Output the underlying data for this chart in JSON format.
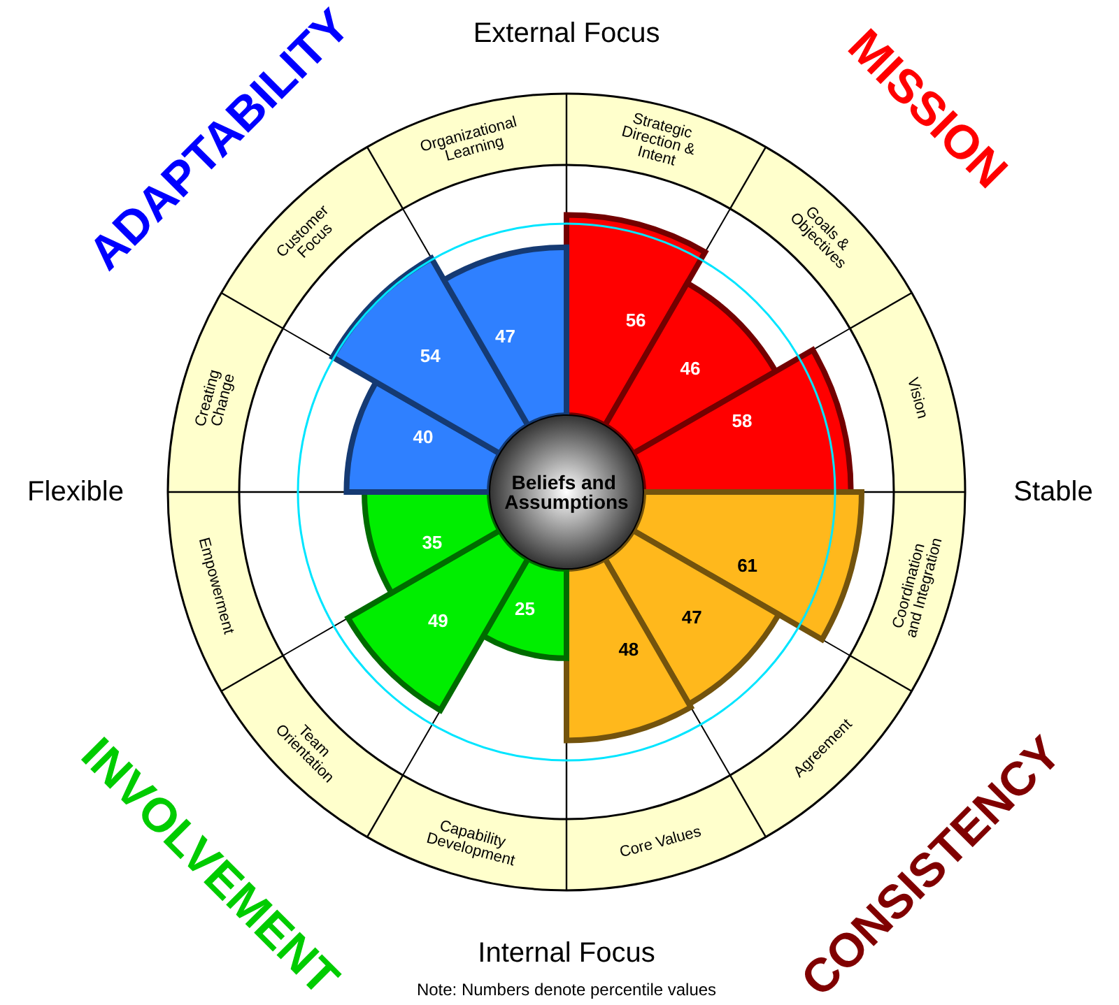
{
  "chart_data": {
    "type": "other",
    "categories": [
      "Strategic Direction & Intent",
      "Goals & Objectives",
      "Vision",
      "Coordination and Integration",
      "Agreement",
      "Core Values",
      "Capability Development",
      "Team Orientation",
      "Empowerment",
      "Creating Change",
      "Customer Focus",
      "Organizational Learning"
    ],
    "values": [
      56,
      46,
      58,
      61,
      47,
      48,
      25,
      49,
      35,
      40,
      54,
      47
    ],
    "colors": [
      "#ff0000",
      "#ff0000",
      "#ff0000",
      "#ffb81c",
      "#ffb81c",
      "#ffb81c",
      "#00ee00",
      "#00ee00",
      "#00ee00",
      "#2f80ff",
      "#2f80ff",
      "#2f80ff"
    ],
    "data_labels": true,
    "annotations": [
      "External Focus",
      "Stable",
      "Internal Focus",
      "Flexible",
      "Beliefs and Assumptions",
      "MISSION",
      "CONSISTENCY",
      "INVOLVEMENT",
      "ADAPTABILITY",
      "Note: Numbers denote percentile values"
    ]
  }
}
